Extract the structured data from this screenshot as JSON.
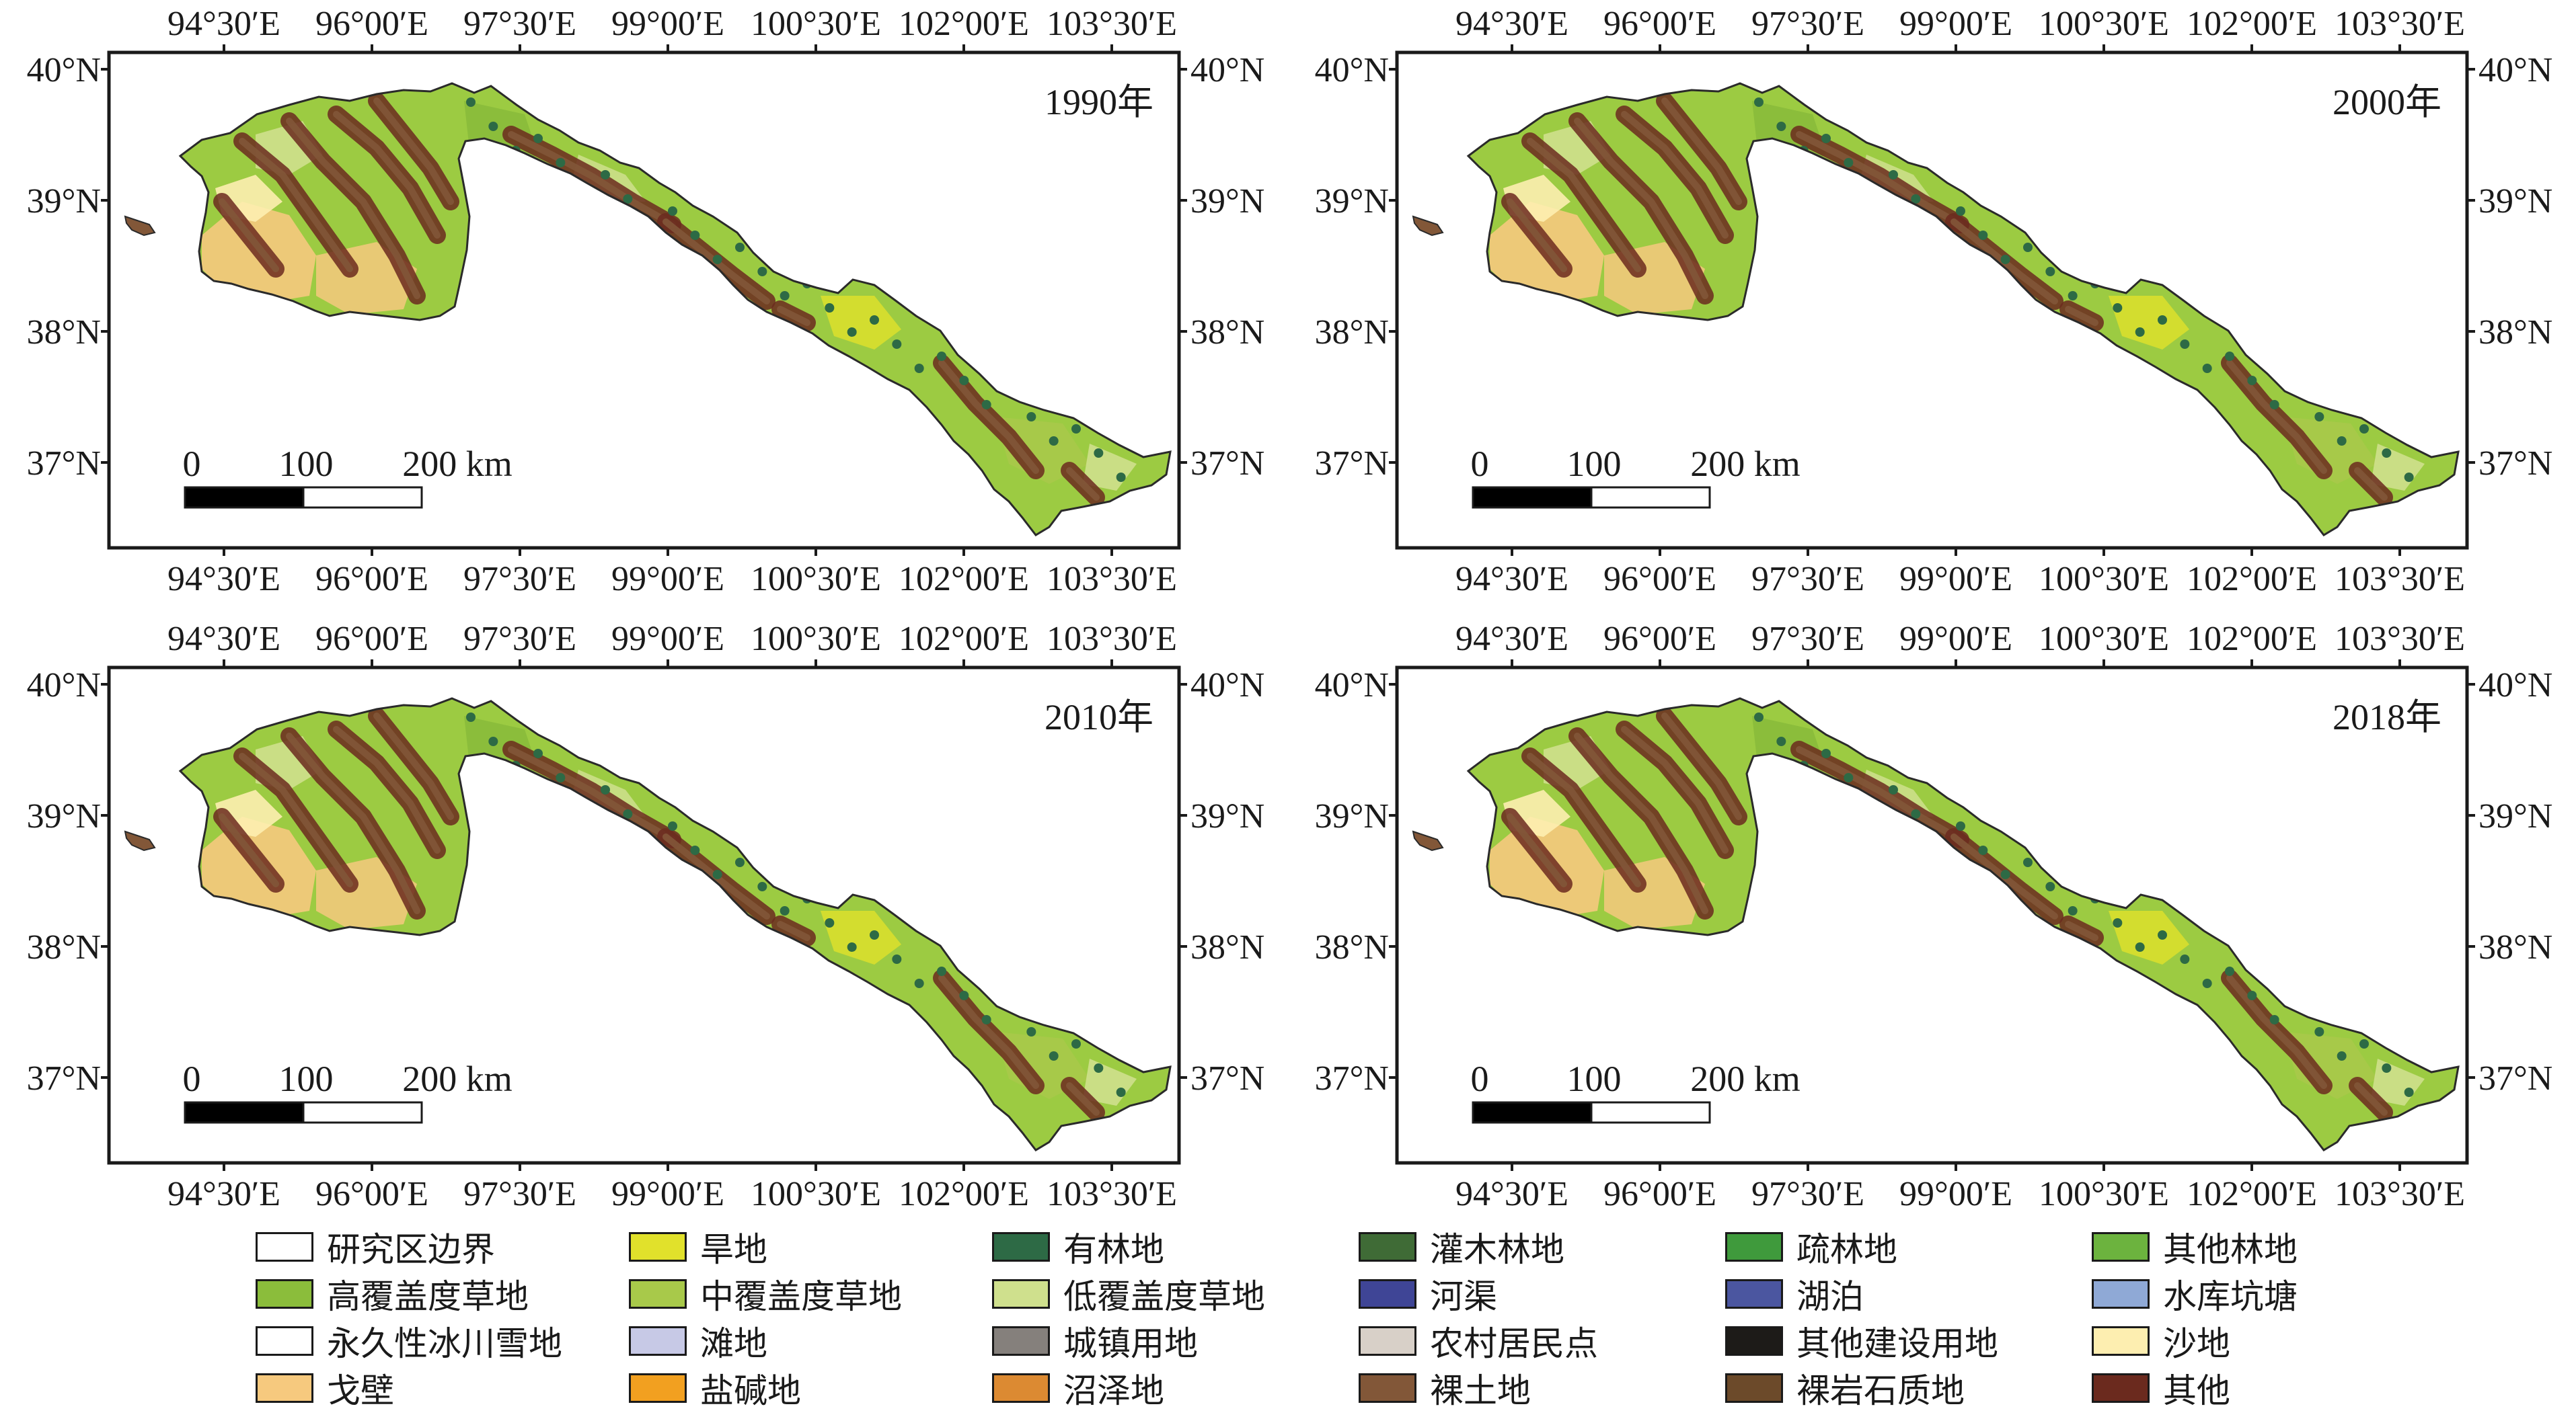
{
  "lon_labels": [
    "94°30′E",
    "96°00′E",
    "97°30′E",
    "99°00′E",
    "100°30′E",
    "102°00′E",
    "103°30′E"
  ],
  "lat_labels": [
    "40°N",
    "39°N",
    "38°N",
    "37°N"
  ],
  "scale_bar": {
    "tick_0": "0",
    "tick_1": "100",
    "tick_2": "200 km"
  },
  "panels": [
    {
      "year_label": "1990年"
    },
    {
      "year_label": "2000年"
    },
    {
      "year_label": "2010年"
    },
    {
      "year_label": "2018年"
    }
  ],
  "legend": [
    {
      "label": "研究区边界",
      "color": "#ffffff"
    },
    {
      "label": "旱地",
      "color": "#e1e12b"
    },
    {
      "label": "有林地",
      "color": "#2d6a45"
    },
    {
      "label": "灌木林地",
      "color": "#3f6b36"
    },
    {
      "label": "疏林地",
      "color": "#3f9a3c"
    },
    {
      "label": "其他林地",
      "color": "#6cb33e"
    },
    {
      "label": "高覆盖度草地",
      "color": "#8bbd3b"
    },
    {
      "label": "中覆盖度草地",
      "color": "#a8c94a"
    },
    {
      "label": "低覆盖度草地",
      "color": "#cfe08d"
    },
    {
      "label": "河渠",
      "color": "#3f4596"
    },
    {
      "label": "湖泊",
      "color": "#4b56a0"
    },
    {
      "label": "水库坑塘",
      "color": "#8fa9d6"
    },
    {
      "label": "永久性冰川雪地",
      "color": "#ffffff"
    },
    {
      "label": "滩地",
      "color": "#c7c9e6"
    },
    {
      "label": "城镇用地",
      "color": "#85807c"
    },
    {
      "label": "农村居民点",
      "color": "#d8d0c8"
    },
    {
      "label": "其他建设用地",
      "color": "#1d1b18"
    },
    {
      "label": "沙地",
      "color": "#fdeeb0"
    },
    {
      "label": "戈壁",
      "color": "#f6c97e"
    },
    {
      "label": "盐碱地",
      "color": "#f2a020"
    },
    {
      "label": "沼泽地",
      "color": "#dc8a32"
    },
    {
      "label": "裸土地",
      "color": "#825738"
    },
    {
      "label": "裸岩石质地",
      "color": "#6c4a2a"
    },
    {
      "label": "其他",
      "color": "#6b2a1e"
    }
  ]
}
